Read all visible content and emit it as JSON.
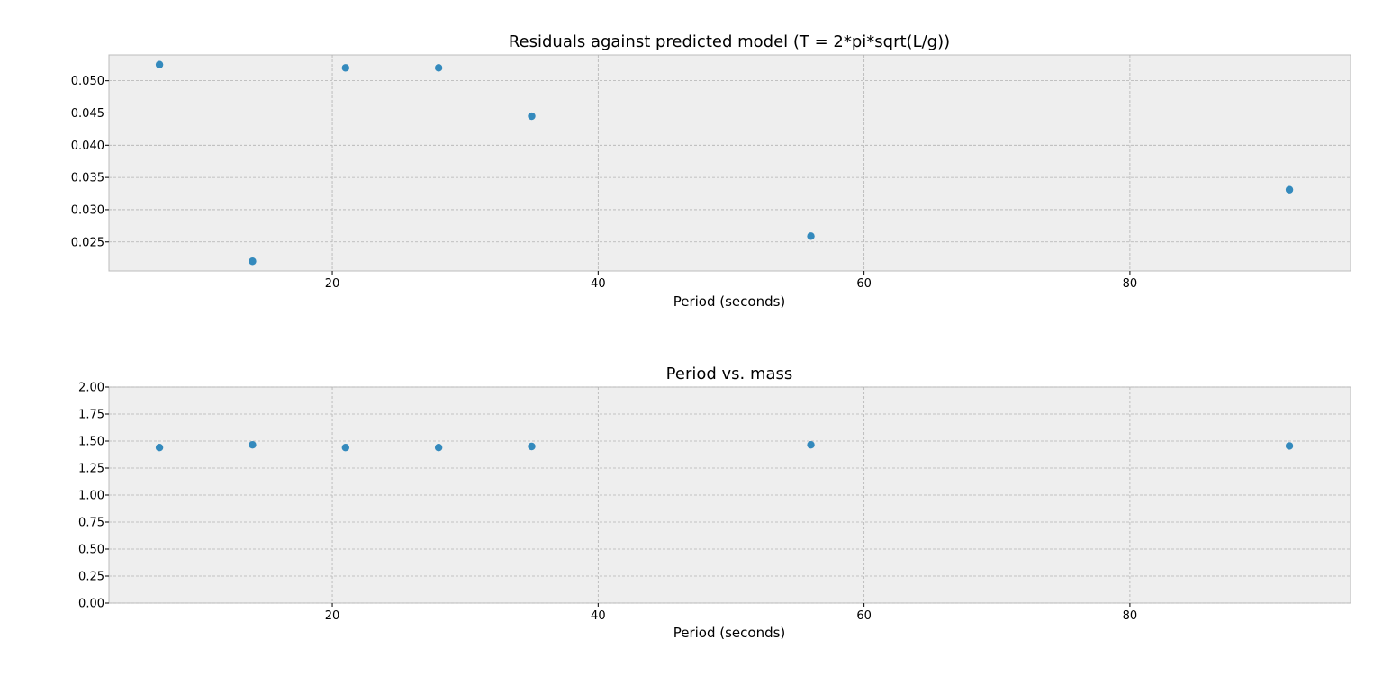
{
  "colors": {
    "marker": "#348ABD",
    "plot_background": "#EEEEEE",
    "grid": "#B2B2B2"
  },
  "chart_data": [
    {
      "type": "scatter",
      "title": "Residuals against predicted model (T = 2*pi*sqrt(L/g))",
      "xlabel": "Period (seconds)",
      "ylabel": "",
      "xlim": [
        3.2,
        96.6
      ],
      "ylim": [
        0.0205,
        0.054
      ],
      "xticks": [
        20,
        40,
        60,
        80
      ],
      "xtick_labels": [
        "20",
        "40",
        "60",
        "80"
      ],
      "yticks": [
        0.025,
        0.03,
        0.035,
        0.04,
        0.045,
        0.05
      ],
      "ytick_labels": [
        "0.025",
        "0.030",
        "0.035",
        "0.040",
        "0.045",
        "0.050"
      ],
      "grid": true,
      "series": [
        {
          "x": [
            7,
            14,
            21,
            28,
            35,
            56,
            92
          ],
          "y": [
            0.0525,
            0.022,
            0.052,
            0.052,
            0.0445,
            0.0259,
            0.0331
          ]
        }
      ]
    },
    {
      "type": "scatter",
      "title": "Period vs. mass",
      "xlabel": "Period (seconds)",
      "ylabel": "",
      "xlim": [
        3.2,
        96.6
      ],
      "ylim": [
        0.0,
        2.0
      ],
      "xticks": [
        20,
        40,
        60,
        80
      ],
      "xtick_labels": [
        "20",
        "40",
        "60",
        "80"
      ],
      "yticks": [
        0.0,
        0.25,
        0.5,
        0.75,
        1.0,
        1.25,
        1.5,
        1.75,
        2.0
      ],
      "ytick_labels": [
        "0.00",
        "0.25",
        "0.50",
        "0.75",
        "1.00",
        "1.25",
        "1.50",
        "1.75",
        "2.00"
      ],
      "grid": true,
      "series": [
        {
          "x": [
            7,
            14,
            21,
            28,
            35,
            56,
            92
          ],
          "y": [
            1.44,
            1.465,
            1.44,
            1.44,
            1.45,
            1.465,
            1.455
          ]
        }
      ]
    }
  ]
}
